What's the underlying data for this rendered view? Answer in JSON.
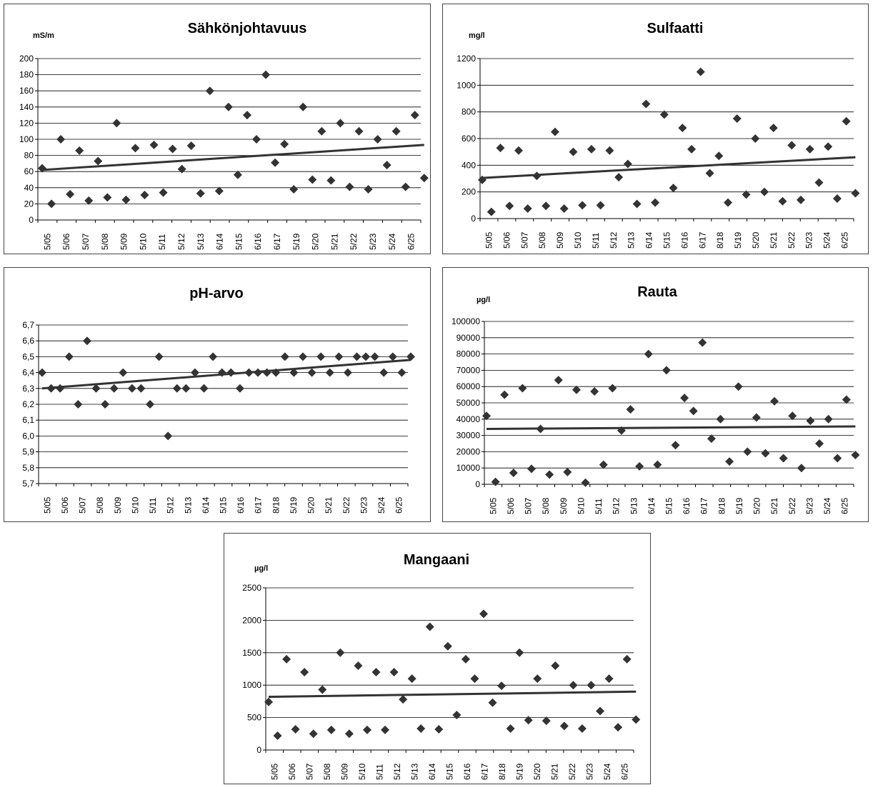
{
  "chart_data": [
    {
      "id": "sahkonjohtavuus",
      "type": "scatter",
      "title": "Sähkönjohtavuus",
      "unit": "mS/m",
      "ylim": [
        0,
        200
      ],
      "yticks": [
        "0",
        "20",
        "40",
        "60",
        "80",
        "100",
        "120",
        "140",
        "160",
        "180",
        "200"
      ],
      "categories": [
        "5/05",
        "5/06",
        "5/07",
        "5/08",
        "5/09",
        "5/10",
        "5/11",
        "5/12",
        "5/13",
        "6/14",
        "5/15",
        "6/16",
        "6/17",
        "5/19",
        "5/20",
        "5/21",
        "5/22",
        "5/23",
        "5/24",
        "6/25"
      ],
      "x": [
        0,
        0.5,
        1,
        1.5,
        2,
        2.5,
        3,
        3.5,
        4,
        4.5,
        5,
        5.5,
        6,
        6.5,
        7,
        7.5,
        8,
        8.5,
        9,
        9.5,
        10,
        10.5,
        11,
        11.5,
        12,
        12.5,
        13,
        13.5,
        14,
        14.5,
        15,
        15.5,
        16,
        16.5,
        17,
        17.5,
        18,
        18.5,
        19,
        19.5,
        20
      ],
      "values": [
        64,
        20,
        100,
        32,
        86,
        24,
        73,
        28,
        120,
        25,
        89,
        31,
        93,
        34,
        88,
        63,
        92,
        33,
        160,
        36,
        140,
        56,
        130,
        100,
        180,
        71,
        94,
        38,
        140,
        50,
        110,
        49,
        120,
        41,
        110,
        38,
        100,
        68,
        110,
        41,
        130
      ],
      "last_value": 52,
      "trend": [
        62,
        93
      ],
      "grid": true
    },
    {
      "id": "sulfaatti",
      "type": "scatter",
      "title": "Sulfaatti",
      "unit": "mg/l",
      "ylim": [
        0,
        1200
      ],
      "yticks": [
        "0",
        "200",
        "400",
        "600",
        "800",
        "1000",
        "1200"
      ],
      "categories": [
        "5/05",
        "5/06",
        "5/07",
        "5/08",
        "5/09",
        "5/10",
        "5/11",
        "5/12",
        "5/13",
        "6/14",
        "5/15",
        "6/16",
        "6/17",
        "8/18",
        "5/19",
        "5/20",
        "5/21",
        "5/22",
        "5/23",
        "5/24",
        "6/25"
      ],
      "values": [
        290,
        50,
        530,
        95,
        510,
        75,
        320,
        95,
        650,
        75,
        500,
        100,
        520,
        100,
        510,
        310,
        410,
        110,
        860,
        120,
        780,
        230,
        680,
        520,
        1100,
        340,
        470,
        120,
        750,
        180,
        600,
        200,
        680,
        130,
        550,
        140,
        520,
        270,
        540,
        150,
        730,
        190
      ],
      "trend": [
        305,
        460
      ],
      "grid": true
    },
    {
      "id": "ph-arvo",
      "type": "scatter",
      "title": "pH-arvo",
      "unit": "",
      "ylim": [
        5.7,
        6.7
      ],
      "yticks": [
        "5,7",
        "5,8",
        "5,9",
        "6,0",
        "6,1",
        "6,2",
        "6,3",
        "6,4",
        "6,5",
        "6,6",
        "6,7"
      ],
      "categories": [
        "5/05",
        "5/06",
        "5/07",
        "5/08",
        "5/09",
        "5/10",
        "5/11",
        "5/12",
        "5/13",
        "6/14",
        "5/15",
        "6/16",
        "6/17",
        "8/18",
        "5/19",
        "5/20",
        "5/21",
        "5/22",
        "5/23",
        "5/24",
        "6/25"
      ],
      "values": [
        6.4,
        6.3,
        6.3,
        6.5,
        6.2,
        6.6,
        6.3,
        6.2,
        6.3,
        6.4,
        6.3,
        6.3,
        6.2,
        6.5,
        6.0,
        6.3,
        6.3,
        6.4,
        6.3,
        6.5,
        6.4,
        6.4,
        6.3,
        6.4,
        6.4,
        6.4,
        6.4,
        6.5,
        6.4,
        6.5,
        6.4,
        6.5,
        6.4,
        6.5,
        6.4,
        6.5,
        6.5,
        6.5,
        6.4,
        6.5,
        6.4,
        6.5
      ],
      "trend": [
        6.3,
        6.48
      ],
      "grid": true
    },
    {
      "id": "rauta",
      "type": "scatter",
      "title": "Rauta",
      "unit": "µg/l",
      "ylim": [
        0,
        100000
      ],
      "yticks": [
        "0",
        "10000",
        "20000",
        "30000",
        "40000",
        "50000",
        "60000",
        "70000",
        "80000",
        "90000",
        "100000"
      ],
      "categories": [
        "5/05",
        "5/06",
        "5/07",
        "5/08",
        "5/09",
        "5/10",
        "5/11",
        "5/12",
        "5/13",
        "6/14",
        "5/15",
        "6/16",
        "6/17",
        "8/18",
        "5/19",
        "5/20",
        "5/21",
        "5/22",
        "5/23",
        "5/24",
        "6/25"
      ],
      "values": [
        42000,
        1500,
        55000,
        7000,
        59000,
        9500,
        34000,
        6000,
        64000,
        7500,
        58000,
        1000,
        57000,
        12000,
        59000,
        33000,
        46000,
        11000,
        80000,
        12000,
        70000,
        24000,
        53000,
        45000,
        87000,
        28000,
        40000,
        14000,
        60000,
        20000,
        41000,
        19000,
        51000,
        16000,
        42000,
        10000,
        39000,
        25000,
        40000,
        16000,
        52000,
        18000
      ],
      "trend": [
        34000,
        35500
      ],
      "grid": true
    },
    {
      "id": "mangaani",
      "type": "scatter",
      "title": "Mangaani",
      "unit": "µg/l",
      "ylim": [
        0,
        2500
      ],
      "yticks": [
        "0",
        "500",
        "1000",
        "1500",
        "2000",
        "2500"
      ],
      "categories": [
        "5/05",
        "5/06",
        "5/07",
        "5/08",
        "5/09",
        "5/10",
        "5/11",
        "5/12",
        "5/13",
        "6/14",
        "5/15",
        "6/16",
        "6/17",
        "8/18",
        "5/19",
        "5/20",
        "5/21",
        "5/22",
        "5/23",
        "5/24",
        "6/25"
      ],
      "values": [
        740,
        220,
        1400,
        320,
        1200,
        250,
        930,
        310,
        1500,
        250,
        1300,
        310,
        1200,
        310,
        1200,
        780,
        1100,
        330,
        1900,
        320,
        1600,
        540,
        1400,
        1100,
        2100,
        730,
        990,
        330,
        1500,
        460,
        1100,
        450,
        1300,
        370,
        1000,
        330,
        1000,
        600,
        1100,
        350,
        1400,
        470
      ],
      "trend": [
        820,
        900
      ],
      "grid": true
    }
  ],
  "colors": {
    "marker": "#333333",
    "trend": "#333333",
    "grid": "#000000"
  }
}
